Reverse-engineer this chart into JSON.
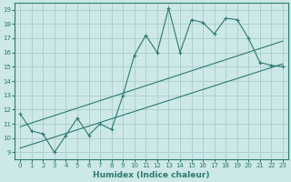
{
  "xlabel": "Humidex (Indice chaleur)",
  "ylabel": "",
  "bg_color": "#cce8e8",
  "grid_color": "#aacccc",
  "line_color": "#2d7a6e",
  "xlim": [
    -0.5,
    23.5
  ],
  "ylim": [
    8.5,
    19.5
  ],
  "xticks": [
    0,
    1,
    2,
    3,
    4,
    5,
    6,
    7,
    8,
    9,
    10,
    11,
    12,
    13,
    14,
    15,
    16,
    17,
    18,
    19,
    20,
    21,
    22,
    23
  ],
  "yticks": [
    9,
    10,
    11,
    12,
    13,
    14,
    15,
    16,
    17,
    18,
    19
  ],
  "data_x": [
    0,
    1,
    2,
    3,
    4,
    5,
    6,
    7,
    8,
    9,
    10,
    11,
    12,
    13,
    14,
    15,
    16,
    17,
    18,
    19,
    20,
    21,
    22,
    23
  ],
  "data_y": [
    11.7,
    10.5,
    10.3,
    9.0,
    10.2,
    11.4,
    10.2,
    11.0,
    10.6,
    13.0,
    15.8,
    17.2,
    16.0,
    19.1,
    16.0,
    18.3,
    18.1,
    17.3,
    18.4,
    18.3,
    17.0,
    15.3,
    15.1,
    15.0
  ],
  "trend1_x": [
    0,
    23
  ],
  "trend1_y": [
    10.8,
    16.8
  ],
  "trend2_x": [
    0,
    23
  ],
  "trend2_y": [
    9.3,
    15.2
  ]
}
